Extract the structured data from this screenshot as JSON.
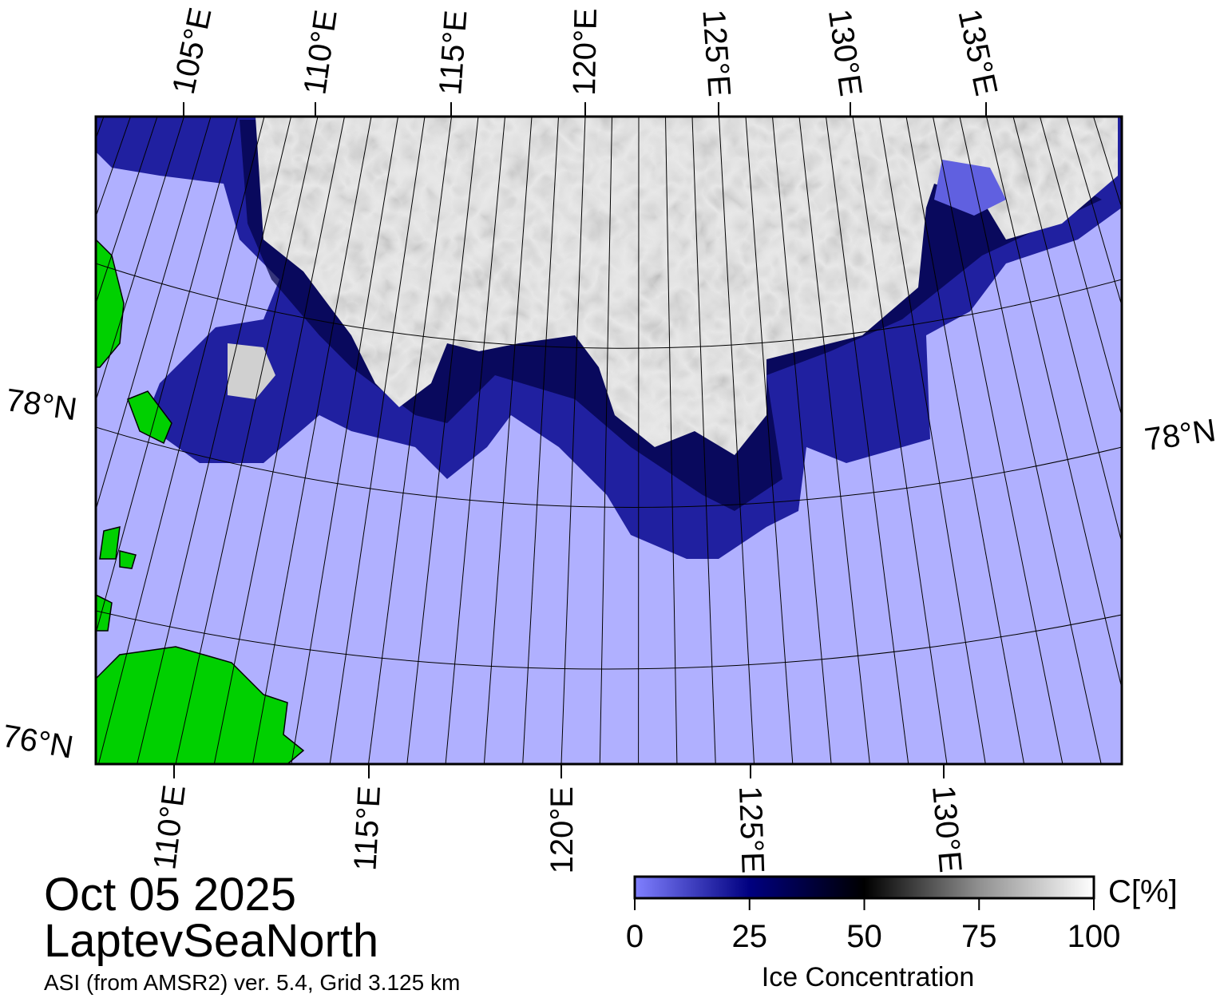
{
  "map": {
    "lon_labels_top": [
      "105°E",
      "110°E",
      "115°E",
      "120°E",
      "125°E",
      "130°E",
      "135°E"
    ],
    "lon_labels_bottom": [
      "110°E",
      "115°E",
      "120°E",
      "125°E",
      "130°E"
    ],
    "lat_labels_left": [
      "78°N",
      "76°N"
    ],
    "lat_labels_right": [
      "78°N"
    ]
  },
  "footer": {
    "date": "Oct 05 2025",
    "region": "LaptevSeaNorth",
    "product": "ASI (from AMSR2) ver. 5.4,  Grid 3.125 km"
  },
  "colorbar": {
    "label": "Ice Concentration",
    "unit": "C[%]",
    "range": [
      0,
      100
    ],
    "ticks": [
      0,
      25,
      50,
      75,
      100
    ]
  }
}
